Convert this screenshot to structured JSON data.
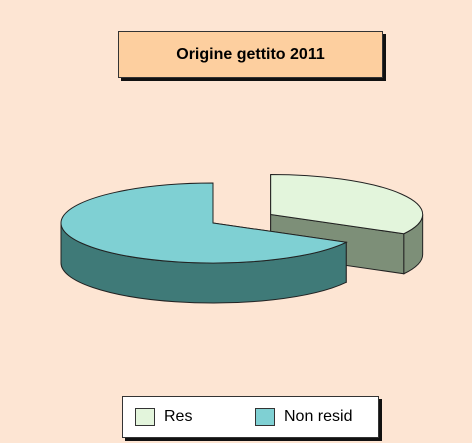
{
  "chart_data": {
    "type": "pie",
    "title": "Origine gettito 2011",
    "categories": [
      "Res",
      "Non resid"
    ],
    "values": [
      33,
      67
    ],
    "colors": {
      "Res": {
        "top": "#e3f5dc",
        "side": "#7d8f78"
      },
      "Non resid": {
        "top": "#7fd0d3",
        "side": "#3f7a78"
      }
    },
    "legend_position": "bottom",
    "exploded": [
      "Res"
    ],
    "style": "3d"
  }
}
